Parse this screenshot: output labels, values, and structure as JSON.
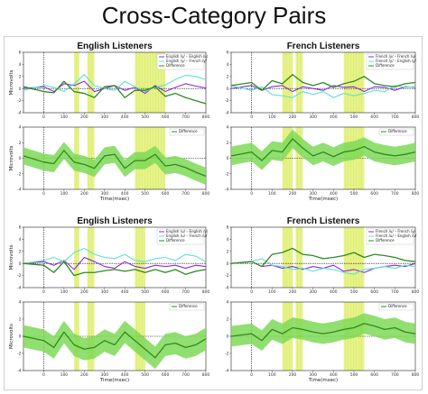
{
  "main_title": "Cross-Category Pairs",
  "colors": {
    "highlight": "#e6f28a",
    "purple": "#8a2be2",
    "cyan": "#5fe0cf",
    "green": "#2f8a1e",
    "band": "#7ed957"
  },
  "chart_data": [
    {
      "id": "top-left-upper",
      "type": "line",
      "title": "English Listeners",
      "xlabel": "",
      "ylabel": "Microvolts",
      "xlim": [
        -100,
        800
      ],
      "ylim": [
        -4,
        6
      ],
      "xticks": [
        0,
        100,
        200,
        300,
        400,
        500,
        600,
        700,
        800
      ],
      "yticks": [
        -4,
        -2,
        0,
        2,
        4,
        6
      ],
      "highlights": [
        [
          150,
          175
        ],
        [
          215,
          250
        ],
        [
          450,
          600
        ]
      ],
      "legend": [
        "English /y/ – English /u/",
        "English /y/ – French /y/",
        "Difference"
      ],
      "series": [
        {
          "name": "English /y/ – English /u/",
          "color": "#8a2be2",
          "x": [
            -100,
            0,
            50,
            100,
            150,
            200,
            250,
            300,
            350,
            400,
            450,
            500,
            550,
            600,
            650,
            700,
            750,
            800
          ],
          "y": [
            0,
            0.3,
            -0.5,
            0.8,
            0.5,
            1.2,
            -0.5,
            0,
            0.5,
            -0.3,
            0.2,
            -0.8,
            0.5,
            -0.5,
            0.2,
            0.8,
            0.4,
            0.1
          ]
        },
        {
          "name": "English /y/ – French /y/",
          "color": "#5fe0cf",
          "x": [
            -100,
            0,
            50,
            100,
            150,
            200,
            250,
            300,
            350,
            400,
            450,
            500,
            550,
            600,
            650,
            700,
            750,
            800
          ],
          "y": [
            -0.3,
            0.5,
            0.2,
            -0.5,
            0.8,
            2.3,
            0.5,
            0,
            -0.3,
            1.2,
            0.3,
            -0.5,
            0.2,
            0.6,
            1.5,
            2.2,
            2.0,
            1.5
          ]
        },
        {
          "name": "Difference",
          "color": "#2f8a1e",
          "x": [
            -100,
            0,
            50,
            100,
            150,
            200,
            250,
            300,
            350,
            400,
            450,
            500,
            550,
            600,
            650,
            700,
            750,
            800
          ],
          "y": [
            0.3,
            -0.5,
            -0.7,
            1.2,
            -0.5,
            -0.8,
            -1.5,
            0.3,
            0.5,
            -1.5,
            -0.3,
            -0.3,
            0.3,
            -1.3,
            -0.8,
            -1.5,
            -2.0,
            -2.5
          ]
        }
      ]
    },
    {
      "id": "top-left-lower",
      "type": "area",
      "title": "",
      "xlabel": "Time(msec)",
      "ylabel": "Microvolts",
      "xlim": [
        -100,
        800
      ],
      "ylim": [
        -4,
        4
      ],
      "xticks": [
        0,
        100,
        200,
        300,
        400,
        500,
        600,
        700,
        800
      ],
      "yticks": [
        -4,
        -2,
        0,
        2,
        4
      ],
      "highlights": [
        [
          150,
          175
        ],
        [
          215,
          250
        ],
        [
          450,
          600
        ]
      ],
      "legend": [
        "Difference"
      ],
      "series": [
        {
          "name": "Difference",
          "color": "#2f8a1e",
          "x": [
            -100,
            0,
            50,
            100,
            150,
            200,
            250,
            300,
            350,
            400,
            450,
            500,
            550,
            600,
            650,
            700,
            750,
            800
          ],
          "y": [
            0.3,
            -0.5,
            -0.7,
            1.0,
            -0.5,
            -0.8,
            -1.3,
            0.3,
            0.5,
            -1.3,
            -0.3,
            -0.3,
            0.5,
            -1.0,
            -0.8,
            -1.2,
            -1.8,
            -2.3
          ],
          "band": 1.1
        }
      ]
    },
    {
      "id": "top-right-upper",
      "type": "line",
      "title": "French Listeners",
      "xlabel": "",
      "ylabel": "",
      "xlim": [
        -100,
        800
      ],
      "ylim": [
        -4,
        6
      ],
      "xticks": [
        0,
        100,
        200,
        300,
        400,
        500,
        600,
        700,
        800
      ],
      "yticks": [
        -4,
        -2,
        0,
        2,
        4,
        6
      ],
      "highlights": [
        [
          150,
          200
        ],
        [
          215,
          250
        ],
        [
          450,
          550
        ]
      ],
      "legend": [
        "French /y/ – French /u/",
        "French /y/ – English /y/",
        "Difference"
      ],
      "series": [
        {
          "name": "French /y/ – French /u/",
          "color": "#8a2be2",
          "x": [
            -100,
            0,
            50,
            100,
            150,
            200,
            250,
            300,
            350,
            400,
            450,
            500,
            550,
            600,
            650,
            700,
            750,
            800
          ],
          "y": [
            0,
            0.5,
            -0.3,
            0.3,
            0.5,
            -0.5,
            0.3,
            0,
            -0.3,
            0.5,
            0.2,
            0.3,
            -0.5,
            0.3,
            0.2,
            -0.3,
            0.3,
            0.2
          ]
        },
        {
          "name": "French /y/ – English /y/",
          "color": "#5fe0cf",
          "x": [
            -100,
            0,
            50,
            100,
            150,
            200,
            250,
            300,
            350,
            400,
            450,
            500,
            550,
            600,
            650,
            700,
            750,
            800
          ],
          "y": [
            0.5,
            -0.3,
            0.3,
            -1.0,
            -1.2,
            -1.5,
            -0.5,
            -1.0,
            -0.5,
            -1.5,
            -0.8,
            -1.2,
            -0.8,
            -0.3,
            -0.5,
            0.5,
            0.2,
            0.3
          ]
        },
        {
          "name": "Difference",
          "color": "#2f8a1e",
          "x": [
            -100,
            0,
            50,
            100,
            150,
            200,
            250,
            300,
            350,
            400,
            450,
            500,
            550,
            600,
            650,
            700,
            750,
            800
          ],
          "y": [
            0.5,
            1.0,
            -0.3,
            1.3,
            0.8,
            2.3,
            1.0,
            0.5,
            1.0,
            0.2,
            0.8,
            1.2,
            2.0,
            0.8,
            0.5,
            0.3,
            0.8,
            1.0
          ]
        }
      ]
    },
    {
      "id": "top-right-lower",
      "type": "area",
      "title": "",
      "xlabel": "Time(msec)",
      "ylabel": "",
      "xlim": [
        -100,
        800
      ],
      "ylim": [
        -4,
        4
      ],
      "xticks": [
        0,
        100,
        200,
        300,
        400,
        500,
        600,
        700,
        800
      ],
      "yticks": [
        -4,
        -2,
        0,
        2,
        4
      ],
      "highlights": [
        [
          150,
          200
        ],
        [
          215,
          250
        ],
        [
          450,
          550
        ]
      ],
      "legend": [
        "Difference"
      ],
      "series": [
        {
          "name": "Difference",
          "color": "#2f8a1e",
          "x": [
            -100,
            0,
            50,
            100,
            150,
            200,
            250,
            300,
            350,
            400,
            450,
            500,
            550,
            600,
            650,
            700,
            750,
            800
          ],
          "y": [
            0.3,
            0.8,
            -0.3,
            1.0,
            0.8,
            2.5,
            1.3,
            0.3,
            0.8,
            0.2,
            0.8,
            1.0,
            1.5,
            0.8,
            0.5,
            0.3,
            0.5,
            0.8
          ],
          "band": 1.2
        }
      ]
    },
    {
      "id": "bottom-left-upper",
      "type": "line",
      "title": "English Listeners",
      "xlabel": "",
      "ylabel": "Microvolts",
      "xlim": [
        -100,
        800
      ],
      "ylim": [
        -4,
        6
      ],
      "xticks": [
        0,
        100,
        200,
        300,
        400,
        500,
        600,
        700,
        800
      ],
      "yticks": [
        -4,
        -2,
        0,
        2,
        4,
        6
      ],
      "highlights": [
        [
          150,
          175
        ],
        [
          215,
          250
        ],
        [
          450,
          500
        ]
      ],
      "legend": [
        "English /u/ – English /y/",
        "English /u/ – French /u/",
        "Difference"
      ],
      "series": [
        {
          "name": "English /u/ – English /y/",
          "color": "#8a2be2",
          "x": [
            -100,
            0,
            50,
            100,
            150,
            200,
            250,
            300,
            350,
            400,
            450,
            500,
            550,
            600,
            650,
            700,
            750,
            800
          ],
          "y": [
            0,
            0.3,
            -0.3,
            0.5,
            -1.0,
            1.0,
            0.3,
            -0.5,
            -0.8,
            0.3,
            -0.5,
            -0.8,
            -0.3,
            -0.5,
            -0.3,
            -0.8,
            -0.3,
            -0.5
          ]
        },
        {
          "name": "English /u/ – French /u/",
          "color": "#5fe0cf",
          "x": [
            -100,
            0,
            50,
            100,
            150,
            200,
            250,
            300,
            350,
            400,
            450,
            500,
            550,
            600,
            650,
            700,
            750,
            800
          ],
          "y": [
            0,
            0.5,
            1.0,
            0.3,
            1.8,
            2.5,
            1.5,
            1.0,
            0.8,
            1.5,
            0.5,
            0.3,
            0.8,
            1.0,
            0.5,
            1.5,
            1.2,
            0.3
          ]
        },
        {
          "name": "Difference",
          "color": "#2f8a1e",
          "x": [
            -100,
            0,
            50,
            100,
            150,
            200,
            250,
            300,
            350,
            400,
            450,
            500,
            550,
            600,
            650,
            700,
            750,
            800
          ],
          "y": [
            0,
            -0.3,
            -1.5,
            0.3,
            -2.0,
            -1.5,
            -1.5,
            -1.2,
            -1.0,
            -1.3,
            -1.0,
            -1.5,
            -1.0,
            -1.5,
            -1.0,
            -1.8,
            -1.3,
            -1.0
          ]
        }
      ]
    },
    {
      "id": "bottom-left-lower",
      "type": "area",
      "title": "",
      "xlabel": "Time(msec)",
      "ylabel": "Microvolts",
      "xlim": [
        -100,
        800
      ],
      "ylim": [
        -4,
        4
      ],
      "xticks": [
        0,
        100,
        200,
        300,
        400,
        500,
        600,
        700,
        800
      ],
      "yticks": [
        -4,
        -2,
        0,
        2,
        4
      ],
      "highlights": [
        [
          150,
          175
        ],
        [
          215,
          250
        ],
        [
          450,
          500
        ]
      ],
      "legend": [
        "Difference"
      ],
      "series": [
        {
          "name": "Difference",
          "color": "#2f8a1e",
          "x": [
            -100,
            0,
            50,
            100,
            150,
            200,
            250,
            300,
            350,
            400,
            450,
            500,
            550,
            600,
            650,
            700,
            750,
            800
          ],
          "y": [
            0,
            -0.5,
            -1.3,
            0.5,
            -1.0,
            -1.5,
            -1.3,
            -0.5,
            -1.0,
            0.5,
            -0.5,
            -1.5,
            -2.5,
            -1.0,
            -0.8,
            -1.3,
            -1.0,
            -0.3
          ],
          "band": 1.3
        }
      ]
    },
    {
      "id": "bottom-right-upper",
      "type": "line",
      "title": "French Listeners",
      "xlabel": "",
      "ylabel": "",
      "xlim": [
        -100,
        800
      ],
      "ylim": [
        -4,
        6
      ],
      "xticks": [
        0,
        100,
        200,
        300,
        400,
        500,
        600,
        700,
        800
      ],
      "yticks": [
        -4,
        -2,
        0,
        2,
        4,
        6
      ],
      "highlights": [
        [
          150,
          200
        ],
        [
          215,
          250
        ],
        [
          450,
          550
        ]
      ],
      "legend": [
        "French /u/ – French /y/",
        "French /u/ – English /u/",
        "Difference"
      ],
      "series": [
        {
          "name": "French /u/ – French /y/",
          "color": "#8a2be2",
          "x": [
            -100,
            0,
            50,
            100,
            150,
            200,
            250,
            300,
            350,
            400,
            450,
            500,
            550,
            600,
            650,
            700,
            750,
            800
          ],
          "y": [
            0,
            0.3,
            -0.5,
            -0.3,
            -0.8,
            -0.5,
            -1.0,
            -0.5,
            -0.8,
            -0.3,
            -1.3,
            -1.0,
            -1.5,
            -0.8,
            -0.5,
            -0.3,
            -0.5,
            0
          ]
        },
        {
          "name": "French /u/ – English /u/",
          "color": "#5fe0cf",
          "x": [
            -100,
            0,
            50,
            100,
            150,
            200,
            250,
            300,
            350,
            400,
            450,
            500,
            550,
            600,
            650,
            700,
            750,
            800
          ],
          "y": [
            0,
            0.3,
            0.8,
            -0.3,
            -0.5,
            -1.0,
            -0.8,
            -1.3,
            -0.8,
            -1.0,
            -1.5,
            -1.8,
            -1.0,
            -0.8,
            -0.5,
            -0.8,
            -0.3,
            -0.5
          ]
        },
        {
          "name": "Difference",
          "color": "#2f8a1e",
          "x": [
            -100,
            0,
            50,
            100,
            150,
            200,
            250,
            300,
            350,
            400,
            450,
            500,
            550,
            600,
            650,
            700,
            750,
            800
          ],
          "y": [
            0,
            0.3,
            -0.5,
            1.5,
            1.8,
            2.5,
            1.5,
            1.3,
            0.8,
            1.0,
            1.3,
            1.8,
            1.0,
            1.5,
            1.3,
            1.0,
            0.5,
            0.3
          ]
        }
      ]
    },
    {
      "id": "bottom-right-lower",
      "type": "area",
      "title": "",
      "xlabel": "Time(msec)",
      "ylabel": "",
      "xlim": [
        -100,
        800
      ],
      "ylim": [
        -4,
        4
      ],
      "xticks": [
        0,
        100,
        200,
        300,
        400,
        500,
        600,
        700,
        800
      ],
      "yticks": [
        -4,
        -2,
        0,
        2,
        4
      ],
      "highlights": [
        [
          150,
          200
        ],
        [
          215,
          250
        ],
        [
          450,
          550
        ]
      ],
      "legend": [
        "Difference"
      ],
      "series": [
        {
          "name": "Difference",
          "color": "#2f8a1e",
          "x": [
            -100,
            0,
            50,
            100,
            150,
            200,
            250,
            300,
            350,
            400,
            450,
            500,
            550,
            600,
            650,
            700,
            750,
            800
          ],
          "y": [
            0,
            0.3,
            -0.5,
            0.8,
            0.3,
            1.0,
            0.8,
            0.5,
            0.3,
            0.5,
            0.8,
            1.0,
            1.5,
            1.2,
            0.8,
            1.0,
            0.5,
            0.3
          ],
          "band": 1.2
        }
      ]
    }
  ]
}
